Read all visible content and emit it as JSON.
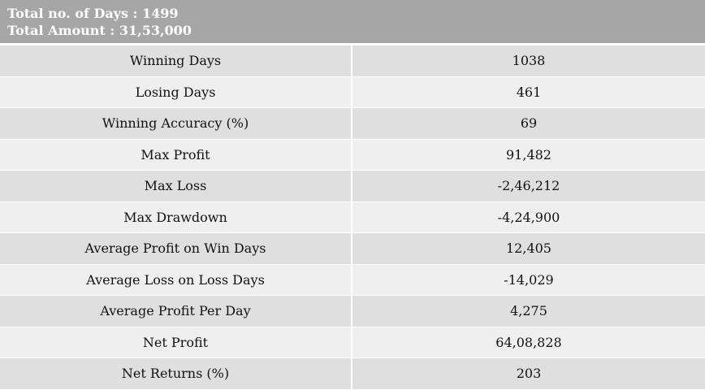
{
  "header": {
    "line1": "Total no. of Days : 1499",
    "line2": "Total Amount : 31,53,000"
  },
  "table": {
    "rows": [
      {
        "label": "Winning Days",
        "value": "1038"
      },
      {
        "label": "Losing Days",
        "value": "461"
      },
      {
        "label": "Winning Accuracy (%)",
        "value": "69"
      },
      {
        "label": "Max Profit",
        "value": "91,482"
      },
      {
        "label": "Max Loss",
        "value": "-2,46,212"
      },
      {
        "label": "Max Drawdown",
        "value": "-4,24,900"
      },
      {
        "label": "Average Profit on Win Days",
        "value": "12,405"
      },
      {
        "label": "Average Loss on Loss Days",
        "value": "-14,029"
      },
      {
        "label": "Average Profit Per Day",
        "value": "4,275"
      },
      {
        "label": "Net Profit",
        "value": "64,08,828"
      },
      {
        "label": "Net Returns (%)",
        "value": "203"
      }
    ]
  },
  "colors": {
    "header_bg": "#a6a6a6",
    "row_dark": "#dfdfdf",
    "row_light": "#efefef"
  }
}
